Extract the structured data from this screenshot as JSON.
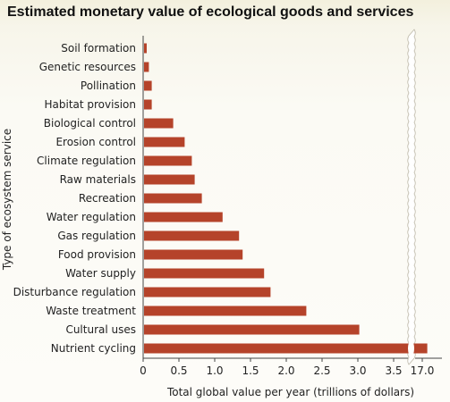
{
  "chart_data": {
    "type": "bar",
    "orientation": "horizontal",
    "title": "Estimated monetary value of ecological goods and services",
    "xlabel": "Total global value per year (trillions of dollars)",
    "ylabel": "Type of ecosystem service",
    "categories": [
      "Soil formation",
      "Genetic resources",
      "Pollination",
      "Habitat provision",
      "Biological control",
      "Erosion control",
      "Climate regulation",
      "Raw materials",
      "Recreation",
      "Water regulation",
      "Gas regulation",
      "Food provision",
      "Water supply",
      "Disturbance regulation",
      "Waste treatment",
      "Cultural uses",
      "Nutrient cycling"
    ],
    "values": [
      0.05,
      0.08,
      0.12,
      0.12,
      0.42,
      0.58,
      0.68,
      0.72,
      0.82,
      1.11,
      1.34,
      1.39,
      1.69,
      1.78,
      2.28,
      3.02,
      17.07
    ],
    "xticks": [
      "0",
      "0.5",
      "1.0",
      "1.5",
      "2.0",
      "2.5",
      "3.0",
      "3.5",
      "17.0"
    ],
    "xlim": [
      0,
      3.8
    ],
    "axis_break": {
      "from": 3.7,
      "to": 16.9
    },
    "bar_color": "#b5432a",
    "grid": false,
    "legend": "none"
  }
}
